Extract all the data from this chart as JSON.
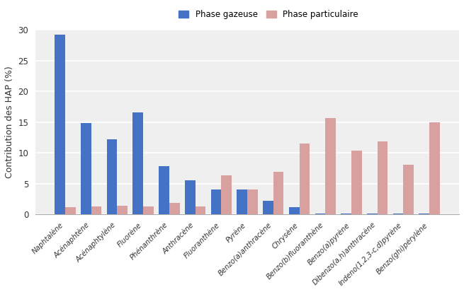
{
  "categories": [
    "Naphtalène",
    "Acénaphtène",
    "Acénaphtylène",
    "Fluorène",
    "Phénanthrène",
    "Anthracène",
    "Fluoranthène",
    "Pyrène",
    "Benzo(a)anthracène",
    "Chrysène",
    "Benzo(b)fluoranthène",
    "Benzo(a)pyrène",
    "Dibenzo(a,h)anthracène",
    "Indeno(1,2,3-c,d)pyrène",
    "Benzo(ghi)pérylène"
  ],
  "gas_phase": [
    29.2,
    14.9,
    12.2,
    16.6,
    7.8,
    5.6,
    4.1,
    4.1,
    2.2,
    1.2,
    0.2,
    0.2,
    0.15,
    0.15,
    0.15
  ],
  "particle_phase": [
    1.2,
    1.3,
    1.4,
    1.3,
    1.9,
    1.3,
    6.3,
    4.1,
    6.9,
    11.5,
    15.7,
    10.4,
    11.9,
    8.1,
    15.0
  ],
  "gas_color": "#4472C4",
  "particle_color": "#C0504D",
  "particle_fill_color": "#D9A0A0",
  "ylabel": "Contribution des HAP (%)",
  "ylim": [
    0,
    30
  ],
  "yticks": [
    0,
    5,
    10,
    15,
    20,
    25,
    30
  ],
  "legend_gas": "Phase gazeuse",
  "legend_particle": "Phase particulaire",
  "bg_color": "#FFFFFF",
  "plot_bg_color": "#EFEFEF",
  "grid_color": "#FFFFFF",
  "bar_width": 0.4
}
